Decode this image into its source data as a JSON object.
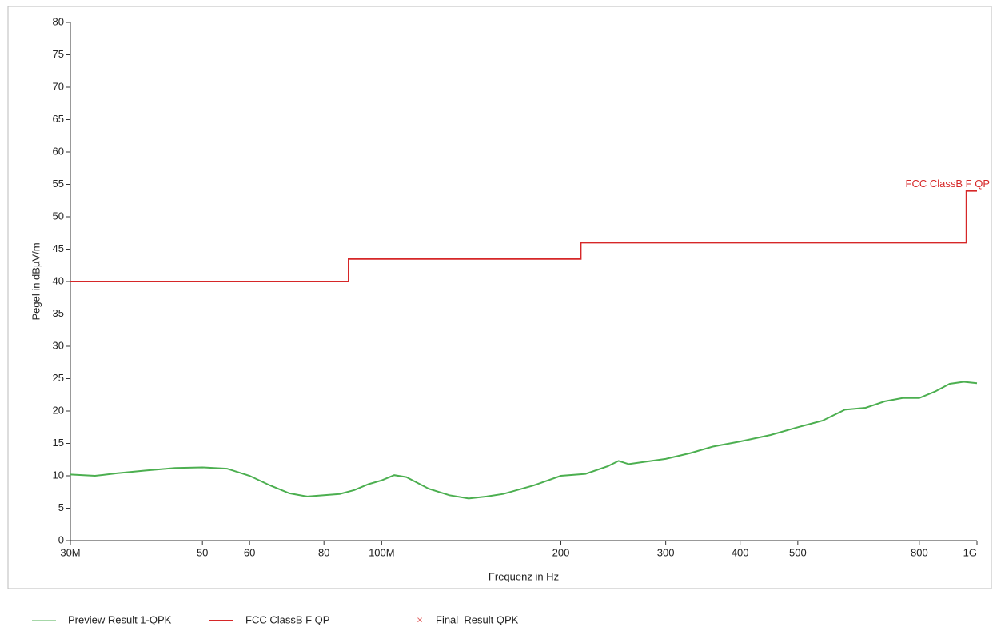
{
  "chart_data": {
    "type": "line",
    "xlabel": "Frequenz in Hz",
    "ylabel": "Pegel in dBµV/m",
    "xscale": "log",
    "xlim": [
      30000000,
      1000000000
    ],
    "ylim": [
      0,
      80
    ],
    "xticks": [
      {
        "value": 30000000,
        "label": "30M"
      },
      {
        "value": 50000000,
        "label": "50"
      },
      {
        "value": 60000000,
        "label": "60"
      },
      {
        "value": 80000000,
        "label": "80"
      },
      {
        "value": 100000000,
        "label": "100M"
      },
      {
        "value": 200000000,
        "label": "200"
      },
      {
        "value": 300000000,
        "label": "300"
      },
      {
        "value": 400000000,
        "label": "400"
      },
      {
        "value": 500000000,
        "label": "500"
      },
      {
        "value": 800000000,
        "label": "800"
      },
      {
        "value": 1000000000,
        "label": "1G"
      }
    ],
    "yticks": [
      0,
      5,
      10,
      15,
      20,
      25,
      30,
      35,
      40,
      45,
      50,
      55,
      60,
      65,
      70,
      75,
      80
    ],
    "grid": false,
    "series": [
      {
        "name": "Preview Result 1-QPK",
        "color": "#4caf50",
        "marker": "line",
        "x": [
          30000000,
          33000000,
          36000000,
          40000000,
          45000000,
          50000000,
          55000000,
          60000000,
          65000000,
          70000000,
          75000000,
          80000000,
          85000000,
          90000000,
          95000000,
          100000000,
          105000000,
          110000000,
          120000000,
          130000000,
          140000000,
          150000000,
          160000000,
          180000000,
          200000000,
          220000000,
          240000000,
          250000000,
          260000000,
          300000000,
          330000000,
          360000000,
          400000000,
          450000000,
          500000000,
          550000000,
          600000000,
          650000000,
          700000000,
          750000000,
          800000000,
          850000000,
          900000000,
          950000000,
          1000000000
        ],
        "values": [
          10.2,
          10,
          10.4,
          10.8,
          11.2,
          11.3,
          11.1,
          10,
          8.5,
          7.3,
          6.8,
          7,
          7.2,
          7.8,
          8.7,
          9.3,
          10.1,
          9.8,
          8,
          7,
          6.5,
          6.8,
          7.2,
          8.5,
          10,
          10.3,
          11.5,
          12.3,
          11.8,
          12.6,
          13.5,
          14.5,
          15.3,
          16.3,
          17.5,
          18.5,
          20.2,
          20.5,
          21.5,
          22,
          22,
          23,
          24.2,
          24.5,
          24.3
        ]
      },
      {
        "name": "FCC ClassB F QP",
        "color": "#d62728",
        "marker": "line",
        "x": [
          30000000,
          88000000,
          88000000,
          216000000,
          216000000,
          960000000,
          960000000,
          1000000000
        ],
        "values": [
          40,
          40,
          43.5,
          43.5,
          46,
          46,
          54,
          54
        ]
      },
      {
        "name": "Final_Result QPK",
        "color": "#e06060",
        "marker": "x",
        "x": [],
        "values": []
      }
    ],
    "annotations": [
      {
        "text": "FCC ClassB F QP",
        "x": 1000000000,
        "y": 55
      }
    ]
  }
}
